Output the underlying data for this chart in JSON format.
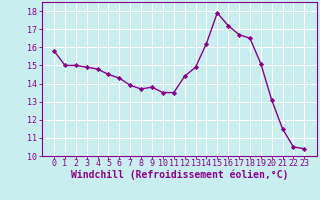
{
  "x": [
    0,
    1,
    2,
    3,
    4,
    5,
    6,
    7,
    8,
    9,
    10,
    11,
    12,
    13,
    14,
    15,
    16,
    17,
    18,
    19,
    20,
    21,
    22,
    23
  ],
  "y": [
    15.8,
    15.0,
    15.0,
    14.9,
    14.8,
    14.5,
    14.3,
    13.9,
    13.7,
    13.8,
    13.5,
    13.5,
    14.4,
    14.9,
    16.2,
    17.9,
    17.2,
    16.7,
    16.5,
    15.1,
    13.1,
    11.5,
    10.5,
    10.4
  ],
  "line_color": "#8b008b",
  "marker": "D",
  "marker_size": 2.2,
  "bg_color": "#c8eef0",
  "grid_color": "#ffffff",
  "xlabel": "Windchill (Refroidissement éolien,°C)",
  "xlabel_color": "#8b008b",
  "ylim": [
    10,
    18.5
  ],
  "yticks": [
    10,
    11,
    12,
    13,
    14,
    15,
    16,
    17,
    18
  ],
  "xticks": [
    0,
    1,
    2,
    3,
    4,
    5,
    6,
    7,
    8,
    9,
    10,
    11,
    12,
    13,
    14,
    15,
    16,
    17,
    18,
    19,
    20,
    21,
    22,
    23
  ],
  "tick_color": "#8b008b",
  "axis_color": "#8b008b",
  "linewidth": 1.0,
  "tick_fontsize": 6.0,
  "xlabel_fontsize": 7.0
}
